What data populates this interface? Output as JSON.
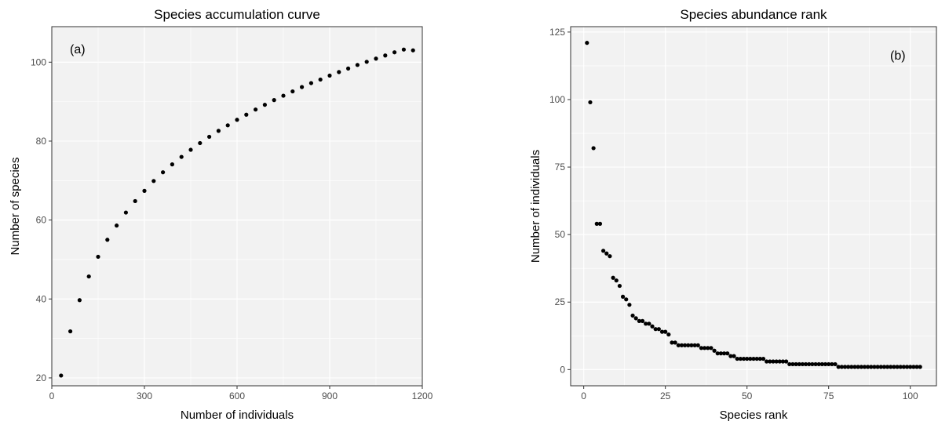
{
  "chart_data": [
    {
      "type": "scatter",
      "title": "Species accumulation curve",
      "panel_label": "(a)",
      "xlabel": "Number of individuals",
      "ylabel": "Number of species",
      "xlim": [
        0,
        1200
      ],
      "ylim": [
        18,
        109
      ],
      "xticks": [
        "0",
        "300",
        "600",
        "900",
        "1200"
      ],
      "yticks": [
        "20",
        "40",
        "60",
        "80",
        "100"
      ],
      "grid": true,
      "marker_color": "#000000",
      "panel_background": "#f2f2f2",
      "x": [
        30,
        60,
        90,
        120,
        150,
        180,
        210,
        240,
        270,
        300,
        330,
        360,
        390,
        420,
        450,
        480,
        510,
        540,
        570,
        600,
        630,
        660,
        690,
        720,
        750,
        780,
        810,
        840,
        870,
        900,
        930,
        960,
        990,
        1020,
        1050,
        1080,
        1110,
        1140,
        1170
      ],
      "y": [
        20.6,
        31.8,
        39.7,
        45.7,
        50.7,
        55.0,
        58.6,
        61.9,
        64.8,
        67.4,
        69.9,
        72.1,
        74.1,
        76.0,
        77.8,
        79.5,
        81.1,
        82.6,
        84.0,
        85.4,
        86.7,
        88.0,
        89.2,
        90.4,
        91.5,
        92.6,
        93.7,
        94.7,
        95.6,
        96.6,
        97.5,
        98.4,
        99.3,
        100.1,
        100.9,
        101.7,
        102.5,
        103.2,
        103.0
      ]
    },
    {
      "type": "scatter",
      "title": "Species abundance rank",
      "panel_label": "(b)",
      "xlabel": "Species rank",
      "ylabel": "Number of individuals",
      "xlim": [
        -4,
        108
      ],
      "ylim": [
        -6,
        127
      ],
      "xticks": [
        "0",
        "25",
        "50",
        "75",
        "100"
      ],
      "yticks": [
        "0",
        "25",
        "50",
        "75",
        "100",
        "125"
      ],
      "grid": true,
      "marker_color": "#000000",
      "panel_background": "#f2f2f2",
      "x": [
        1,
        2,
        3,
        4,
        5,
        6,
        7,
        8,
        9,
        10,
        11,
        12,
        13,
        14,
        15,
        16,
        17,
        18,
        19,
        20,
        21,
        22,
        23,
        24,
        25,
        26,
        27,
        28,
        29,
        30,
        31,
        32,
        33,
        34,
        35,
        36,
        37,
        38,
        39,
        40,
        41,
        42,
        43,
        44,
        45,
        46,
        47,
        48,
        49,
        50,
        51,
        52,
        53,
        54,
        55,
        56,
        57,
        58,
        59,
        60,
        61,
        62,
        63,
        64,
        65,
        66,
        67,
        68,
        69,
        70,
        71,
        72,
        73,
        74,
        75,
        76,
        77,
        78,
        79,
        80,
        81,
        82,
        83,
        84,
        85,
        86,
        87,
        88,
        89,
        90,
        91,
        92,
        93,
        94,
        95,
        96,
        97,
        98,
        99,
        100,
        101,
        102,
        103
      ],
      "y": [
        121,
        99,
        82,
        54,
        54,
        44,
        43,
        42,
        34,
        33,
        31,
        27,
        26,
        24,
        20,
        19,
        18,
        18,
        17,
        17,
        16,
        15,
        15,
        14,
        14,
        13,
        10,
        10,
        9,
        9,
        9,
        9,
        9,
        9,
        9,
        8,
        8,
        8,
        8,
        7,
        6,
        6,
        6,
        6,
        5,
        5,
        4,
        4,
        4,
        4,
        4,
        4,
        4,
        4,
        4,
        3,
        3,
        3,
        3,
        3,
        3,
        3,
        2,
        2,
        2,
        2,
        2,
        2,
        2,
        2,
        2,
        2,
        2,
        2,
        2,
        2,
        2,
        1,
        1,
        1,
        1,
        1,
        1,
        1,
        1,
        1,
        1,
        1,
        1,
        1,
        1,
        1,
        1,
        1,
        1,
        1,
        1,
        1,
        1,
        1,
        1,
        1,
        1
      ]
    }
  ]
}
